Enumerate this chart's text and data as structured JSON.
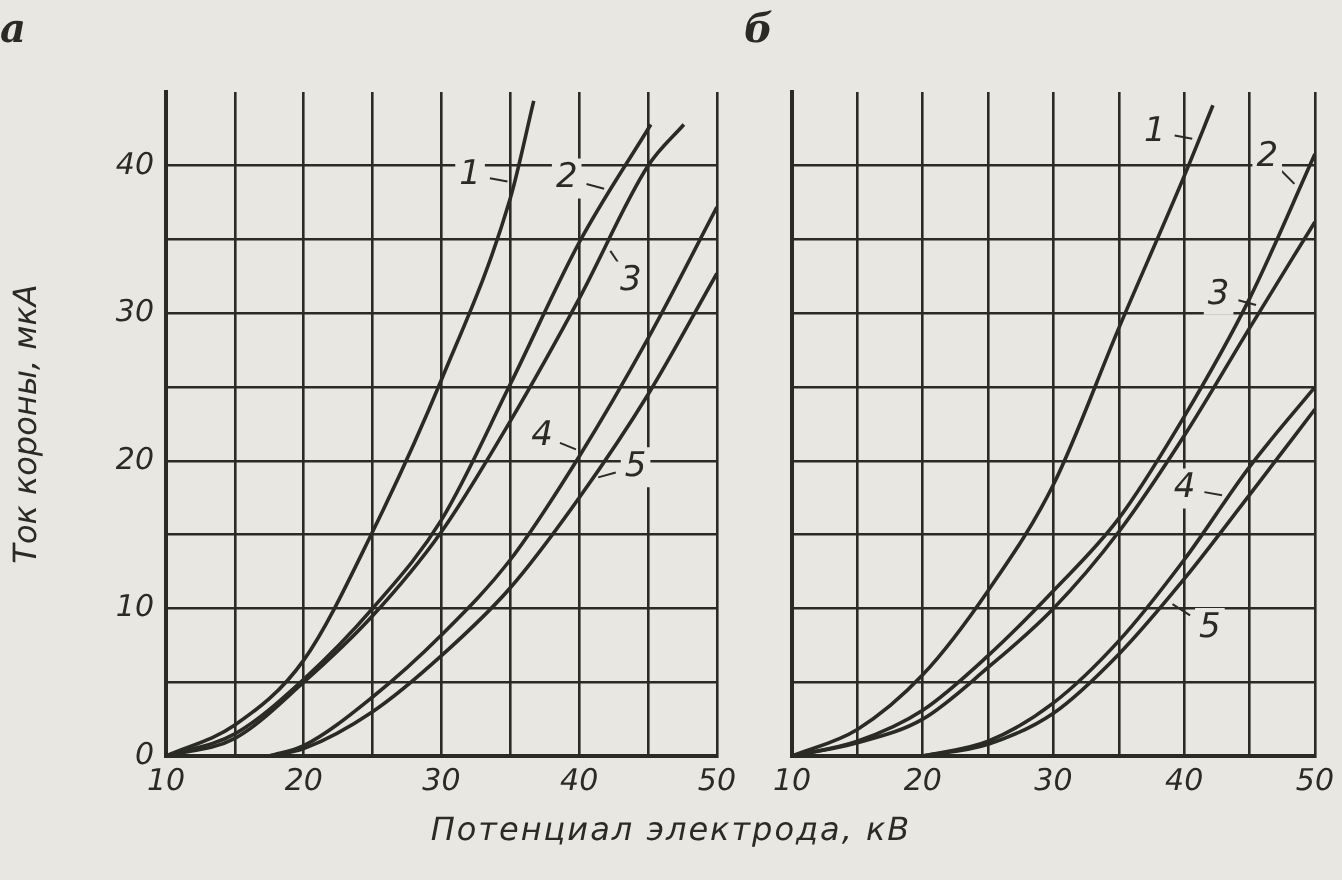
{
  "chart_data": [
    {
      "type": "line",
      "title": "а",
      "xlabel": "Потенциал электрода, кВ",
      "ylabel": "Ток короны, мкА",
      "xlim": [
        10,
        50
      ],
      "ylim": [
        0,
        45
      ],
      "xticks": [
        10,
        {
          "value": 15,
          "label": null
        },
        20,
        {
          "value": 25,
          "label": null
        },
        30,
        {
          "value": 35,
          "label": null
        },
        40,
        {
          "value": 45,
          "label": null
        },
        50
      ],
      "yticks": [
        0,
        {
          "value": 5,
          "label": null
        },
        10,
        {
          "value": 15,
          "label": null
        },
        20,
        {
          "value": 25,
          "label": null
        },
        30,
        {
          "value": 35,
          "label": null
        },
        40
      ],
      "grid": true,
      "legend": "top right",
      "marker": "none",
      "line_style": "solid",
      "series": [
        {
          "name": "1",
          "color": "#2a2a26",
          "x": [
            10,
            15,
            20,
            25,
            30,
            35,
            36.7
          ],
          "values": [
            0,
            2.1,
            6.5,
            15.2,
            25.5,
            37.8,
            44.4
          ]
        },
        {
          "name": "2",
          "color": "#2a2a26",
          "x": [
            10,
            15,
            20,
            25,
            30,
            35,
            40,
            45.2
          ],
          "values": [
            0,
            1.5,
            5.2,
            10,
            16,
            25.2,
            34.8,
            42.8
          ]
        },
        {
          "name": "3",
          "color": "#2a2a26",
          "x": [
            10,
            15,
            20,
            25,
            30,
            35,
            40,
            45,
            47.6
          ],
          "values": [
            0,
            1.2,
            5,
            9.5,
            15.2,
            22.7,
            31,
            40,
            42.8
          ]
        },
        {
          "name": "4",
          "color": "#2a2a26",
          "x": [
            17.5,
            20,
            25,
            30,
            35,
            40,
            45,
            50
          ],
          "values": [
            0,
            0.7,
            4,
            8.2,
            13.3,
            20.3,
            28.3,
            37.2
          ]
        },
        {
          "name": "5",
          "color": "#2a2a26",
          "x": [
            17.5,
            20,
            25,
            30,
            35,
            40,
            45,
            50
          ],
          "values": [
            0,
            0.5,
            3,
            6.8,
            11.4,
            17.5,
            24.5,
            32.7
          ]
        }
      ]
    },
    {
      "type": "line",
      "title": "б",
      "xlim": [
        10,
        50
      ],
      "ylim": [
        0,
        45
      ],
      "xticks": [
        10,
        {
          "value": 15,
          "label": null
        },
        20,
        {
          "value": 25,
          "label": null
        },
        30,
        {
          "value": 35,
          "label": null
        },
        40,
        {
          "value": 45,
          "label": null
        },
        50
      ],
      "yticks": [
        0,
        {
          "value": 5,
          "label": null
        },
        10,
        {
          "value": 15,
          "label": null
        },
        20,
        {
          "value": 25,
          "label": null
        },
        30,
        {
          "value": 35,
          "label": null
        },
        40
      ],
      "tick_labels": "x",
      "grid": true,
      "legend": "top right",
      "marker": "none",
      "line_style": "solid",
      "series": [
        {
          "name": "1",
          "color": "#2a2a26",
          "x": [
            10,
            15,
            20,
            25,
            30,
            35,
            40,
            42.2
          ],
          "values": [
            0,
            1.8,
            5.5,
            11.2,
            18.4,
            29,
            39.3,
            44.1
          ]
        },
        {
          "name": "2",
          "color": "#2a2a26",
          "x": [
            10,
            15,
            20,
            25,
            30,
            35,
            40,
            45,
            50
          ],
          "values": [
            0,
            1,
            3.1,
            6.8,
            11.2,
            16.1,
            23,
            31,
            40.8
          ]
        },
        {
          "name": "3",
          "color": "#2a2a26",
          "x": [
            10,
            15,
            20,
            25,
            30,
            35,
            40,
            45,
            50
          ],
          "values": [
            0,
            0.9,
            2.5,
            6,
            10,
            15.2,
            21.7,
            29,
            36.2
          ]
        },
        {
          "name": "4",
          "color": "#2a2a26",
          "x": [
            20,
            25,
            30,
            35,
            40,
            45,
            50
          ],
          "values": [
            0,
            1,
            3.6,
            7.8,
            13.3,
            19.6,
            25
          ]
        },
        {
          "name": "5",
          "color": "#2a2a26",
          "x": [
            20,
            25,
            30,
            35,
            40,
            45,
            50
          ],
          "values": [
            0,
            0.8,
            2.9,
            6.9,
            12,
            17.7,
            23.5
          ]
        }
      ]
    }
  ]
}
